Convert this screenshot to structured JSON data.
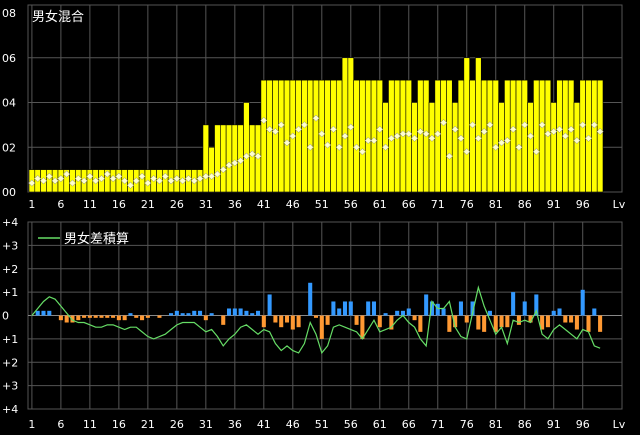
{
  "chart_data": [
    {
      "type": "bar",
      "title": "男女混合",
      "yticks": [
        "08",
        "06",
        "04",
        "02",
        "00"
      ],
      "ylim": [
        0,
        0.8
      ],
      "xticks": [
        "1",
        "6",
        "11",
        "16",
        "21",
        "26",
        "31",
        "36",
        "41",
        "46",
        "51",
        "56",
        "61",
        "66",
        "71",
        "76",
        "81",
        "86",
        "91",
        "96",
        "Lv"
      ],
      "x": [
        1,
        2,
        3,
        4,
        5,
        6,
        7,
        8,
        9,
        10,
        11,
        12,
        13,
        14,
        15,
        16,
        17,
        18,
        19,
        20,
        21,
        22,
        23,
        24,
        25,
        26,
        27,
        28,
        29,
        30,
        31,
        32,
        33,
        34,
        35,
        36,
        37,
        38,
        39,
        40,
        41,
        42,
        43,
        44,
        45,
        46,
        47,
        48,
        49,
        50,
        51,
        52,
        53,
        54,
        55,
        56,
        57,
        58,
        59,
        60,
        61,
        62,
        63,
        64,
        65,
        66,
        67,
        68,
        69,
        70,
        71,
        72,
        73,
        74,
        75,
        76,
        77,
        78,
        79,
        80,
        81,
        82,
        83,
        84,
        85,
        86,
        87,
        88,
        89,
        90,
        91,
        92,
        93,
        94,
        95,
        96,
        97,
        98,
        99
      ],
      "series": [
        {
          "values": [
            0.1,
            0.1,
            0.1,
            0.1,
            0.1,
            0.1,
            0.1,
            0.1,
            0.1,
            0.1,
            0.1,
            0.1,
            0.1,
            0.1,
            0.1,
            0.1,
            0.1,
            0.1,
            0.1,
            0.1,
            0.1,
            0.1,
            0.1,
            0.1,
            0.1,
            0.1,
            0.1,
            0.1,
            0.1,
            0.1,
            0.3,
            0.2,
            0.3,
            0.3,
            0.3,
            0.3,
            0.3,
            0.4,
            0.3,
            0.3,
            0.5,
            0.5,
            0.5,
            0.5,
            0.5,
            0.5,
            0.5,
            0.5,
            0.5,
            0.5,
            0.5,
            0.5,
            0.5,
            0.5,
            0.6,
            0.6,
            0.5,
            0.5,
            0.5,
            0.5,
            0.5,
            0.4,
            0.5,
            0.5,
            0.5,
            0.5,
            0.4,
            0.5,
            0.5,
            0.4,
            0.5,
            0.5,
            0.5,
            0.4,
            0.5,
            0.6,
            0.5,
            0.6,
            0.5,
            0.5,
            0.5,
            0.4,
            0.5,
            0.5,
            0.5,
            0.5,
            0.4,
            0.5,
            0.5,
            0.5,
            0.4,
            0.5,
            0.5,
            0.5,
            0.4,
            0.5,
            0.5,
            0.5,
            0.5
          ]
        },
        {
          "values": [
            0.04,
            0.06,
            0.05,
            0.07,
            0.05,
            0.06,
            0.08,
            0.04,
            0.06,
            0.05,
            0.07,
            0.05,
            0.06,
            0.08,
            0.06,
            0.07,
            0.05,
            0.03,
            0.05,
            0.07,
            0.04,
            0.06,
            0.05,
            0.07,
            0.05,
            0.06,
            0.05,
            0.06,
            0.05,
            0.06,
            0.07,
            0.07,
            0.08,
            0.1,
            0.12,
            0.13,
            0.14,
            0.16,
            0.17,
            0.16,
            0.32,
            0.28,
            0.27,
            0.3,
            0.22,
            0.25,
            0.28,
            0.3,
            0.2,
            0.33,
            0.26,
            0.21,
            0.28,
            0.2,
            0.25,
            0.29,
            0.2,
            0.18,
            0.23,
            0.23,
            0.28,
            0.2,
            0.24,
            0.25,
            0.26,
            0.26,
            0.24,
            0.27,
            0.26,
            0.24,
            0.26,
            0.31,
            0.16,
            0.28,
            0.24,
            0.18,
            0.3,
            0.24,
            0.27,
            0.3,
            0.2,
            0.22,
            0.23,
            0.28,
            0.2,
            0.3,
            0.25,
            0.18,
            0.3,
            0.26,
            0.27,
            0.28,
            0.25,
            0.28,
            0.23,
            0.3,
            0.24,
            0.3,
            0.27
          ]
        }
      ],
      "colors": {
        "bar": "#ffff00",
        "marker": "#ffffcc"
      }
    },
    {
      "type": "bar",
      "title": "男女差積算",
      "yticks": [
        "+4",
        "+3",
        "+2",
        "+1",
        "0",
        "+1",
        "+2",
        "+3",
        "+4"
      ],
      "ylim": [
        -4,
        4
      ],
      "xticks": [
        "1",
        "6",
        "11",
        "16",
        "21",
        "26",
        "31",
        "36",
        "41",
        "46",
        "51",
        "56",
        "61",
        "66",
        "71",
        "76",
        "81",
        "86",
        "91",
        "96",
        "Lv"
      ],
      "x": [
        1,
        2,
        3,
        4,
        5,
        6,
        7,
        8,
        9,
        10,
        11,
        12,
        13,
        14,
        15,
        16,
        17,
        18,
        19,
        20,
        21,
        22,
        23,
        24,
        25,
        26,
        27,
        28,
        29,
        30,
        31,
        32,
        33,
        34,
        35,
        36,
        37,
        38,
        39,
        40,
        41,
        42,
        43,
        44,
        45,
        46,
        47,
        48,
        49,
        50,
        51,
        52,
        53,
        54,
        55,
        56,
        57,
        58,
        59,
        60,
        61,
        62,
        63,
        64,
        65,
        66,
        67,
        68,
        69,
        70,
        71,
        72,
        73,
        74,
        75,
        76,
        77,
        78,
        79,
        80,
        81,
        82,
        83,
        84,
        85,
        86,
        87,
        88,
        89,
        90,
        91,
        92,
        93,
        94,
        95,
        96,
        97,
        98,
        99
      ],
      "series": [
        {
          "values": [
            0,
            0.2,
            0.2,
            0.2,
            0,
            -0.2,
            -0.3,
            -0.3,
            -0.2,
            -0.1,
            -0.1,
            -0.1,
            -0.1,
            -0.1,
            -0.1,
            -0.2,
            -0.2,
            0.1,
            -0.1,
            -0.2,
            -0.1,
            0,
            -0.1,
            0,
            0.1,
            0.2,
            0.1,
            0.1,
            0.2,
            0.2,
            -0.2,
            0.1,
            0,
            -0.4,
            0.3,
            0.3,
            0.3,
            0.2,
            0.1,
            0.2,
            -0.5,
            0.9,
            -0.3,
            -0.5,
            -0.3,
            -0.6,
            -0.5,
            0,
            1.4,
            -0.1,
            -1.0,
            -0.4,
            0.6,
            0.3,
            0.6,
            0.6,
            -0.4,
            -1.0,
            0.6,
            0.6,
            -0.5,
            0.1,
            -0.6,
            0.2,
            0.2,
            0.3,
            -0.2,
            -0.7,
            0.9,
            0.6,
            0.5,
            0.3,
            -0.7,
            -0.5,
            0.6,
            -0.3,
            0.6,
            -0.6,
            -0.7,
            0.2,
            -0.7,
            -0.5,
            -0.5,
            1.0,
            -0.4,
            0.6,
            -0.3,
            0.9,
            -0.6,
            -0.5,
            0.2,
            0.3,
            -0.3,
            -0.3,
            -0.6,
            1.1,
            -0.7,
            0.3,
            -0.7
          ],
          "colors": {
            "positive": "#3399ff",
            "negative": "#ff9933"
          }
        },
        {
          "values": [
            0,
            0.3,
            0.6,
            0.8,
            0.7,
            0.4,
            0.1,
            -0.2,
            -0.3,
            -0.3,
            -0.4,
            -0.5,
            -0.5,
            -0.4,
            -0.4,
            -0.5,
            -0.6,
            -0.5,
            -0.5,
            -0.7,
            -0.9,
            -1.0,
            -0.9,
            -0.8,
            -0.6,
            -0.4,
            -0.3,
            -0.3,
            -0.3,
            -0.5,
            -0.7,
            -0.6,
            -0.9,
            -1.3,
            -1.0,
            -0.8,
            -0.5,
            -0.4,
            -0.6,
            -0.8,
            -0.6,
            -0.7,
            -1.2,
            -1.5,
            -1.3,
            -1.5,
            -1.6,
            -1.2,
            -0.3,
            -0.8,
            -1.6,
            -1.3,
            -0.5,
            -0.4,
            -0.5,
            -0.6,
            -0.7,
            -1.0,
            -0.6,
            -0.2,
            -0.7,
            -0.6,
            -0.5,
            -0.2,
            0,
            -0.3,
            -0.5,
            -1.0,
            -1.3,
            0.6,
            0.3,
            0.3,
            0.6,
            -0.5,
            -0.9,
            -1.0,
            0.1,
            1.2,
            0.4,
            -0.2,
            -0.8,
            -0.5,
            -1.2,
            -0.2,
            -0.3,
            -0.2,
            -0.3,
            0.2,
            -0.8,
            -1.0,
            -0.6,
            -0.4,
            -0.6,
            -0.8,
            -1.0,
            -0.6,
            -0.7,
            -1.3,
            -1.4
          ]
        }
      ],
      "legend": "男女差積算",
      "colors": {
        "line": "#66dd66"
      }
    }
  ]
}
